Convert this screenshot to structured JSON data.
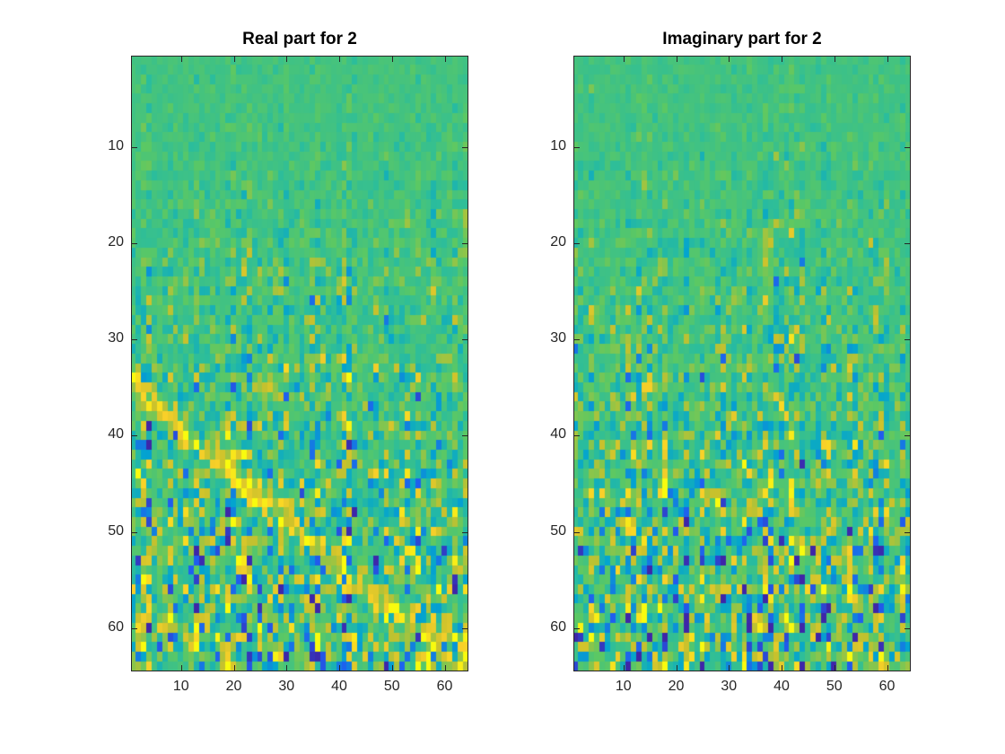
{
  "chart_data": [
    {
      "type": "heatmap",
      "title": "Real part for 2",
      "xlabel": "",
      "ylabel": "",
      "xlim": [
        0.5,
        64.5
      ],
      "ylim": [
        0.5,
        64.5
      ],
      "y_direction": "reversed",
      "xticks": [
        10,
        20,
        30,
        40,
        50,
        60
      ],
      "yticks": [
        10,
        20,
        30,
        40,
        50,
        60
      ],
      "colormap": [
        "#3e26a8",
        "#1f5ef0",
        "#03a4cf",
        "#2bbd9c",
        "#5cc863",
        "#c8c12c",
        "#f9d029",
        "#f9fb0e"
      ],
      "grid": false,
      "matrix_size": [
        64,
        64
      ],
      "features": {
        "baseline": "near-zero values (teal) across most cells",
        "noise_growth": "variance increases from row 1 toward row 64",
        "bright_band": "high (yellow) diagonal band from about (x=1, y=34) to (x=64, y=64)"
      }
    },
    {
      "type": "heatmap",
      "title": "Imaginary part for 2",
      "xlabel": "",
      "ylabel": "",
      "xlim": [
        0.5,
        64.5
      ],
      "ylim": [
        0.5,
        64.5
      ],
      "y_direction": "reversed",
      "xticks": [
        10,
        20,
        30,
        40,
        50,
        60
      ],
      "yticks": [
        10,
        20,
        30,
        40,
        50,
        60
      ],
      "colormap": [
        "#3e26a8",
        "#1f5ef0",
        "#03a4cf",
        "#2bbd9c",
        "#5cc863",
        "#c8c12c",
        "#f9d029",
        "#f9fb0e"
      ],
      "grid": false,
      "matrix_size": [
        64,
        64
      ],
      "features": {
        "baseline": "near-zero values (teal) across most cells",
        "noise_growth": "variance increases from row 1 toward row 64",
        "bright_band": "none"
      }
    }
  ]
}
